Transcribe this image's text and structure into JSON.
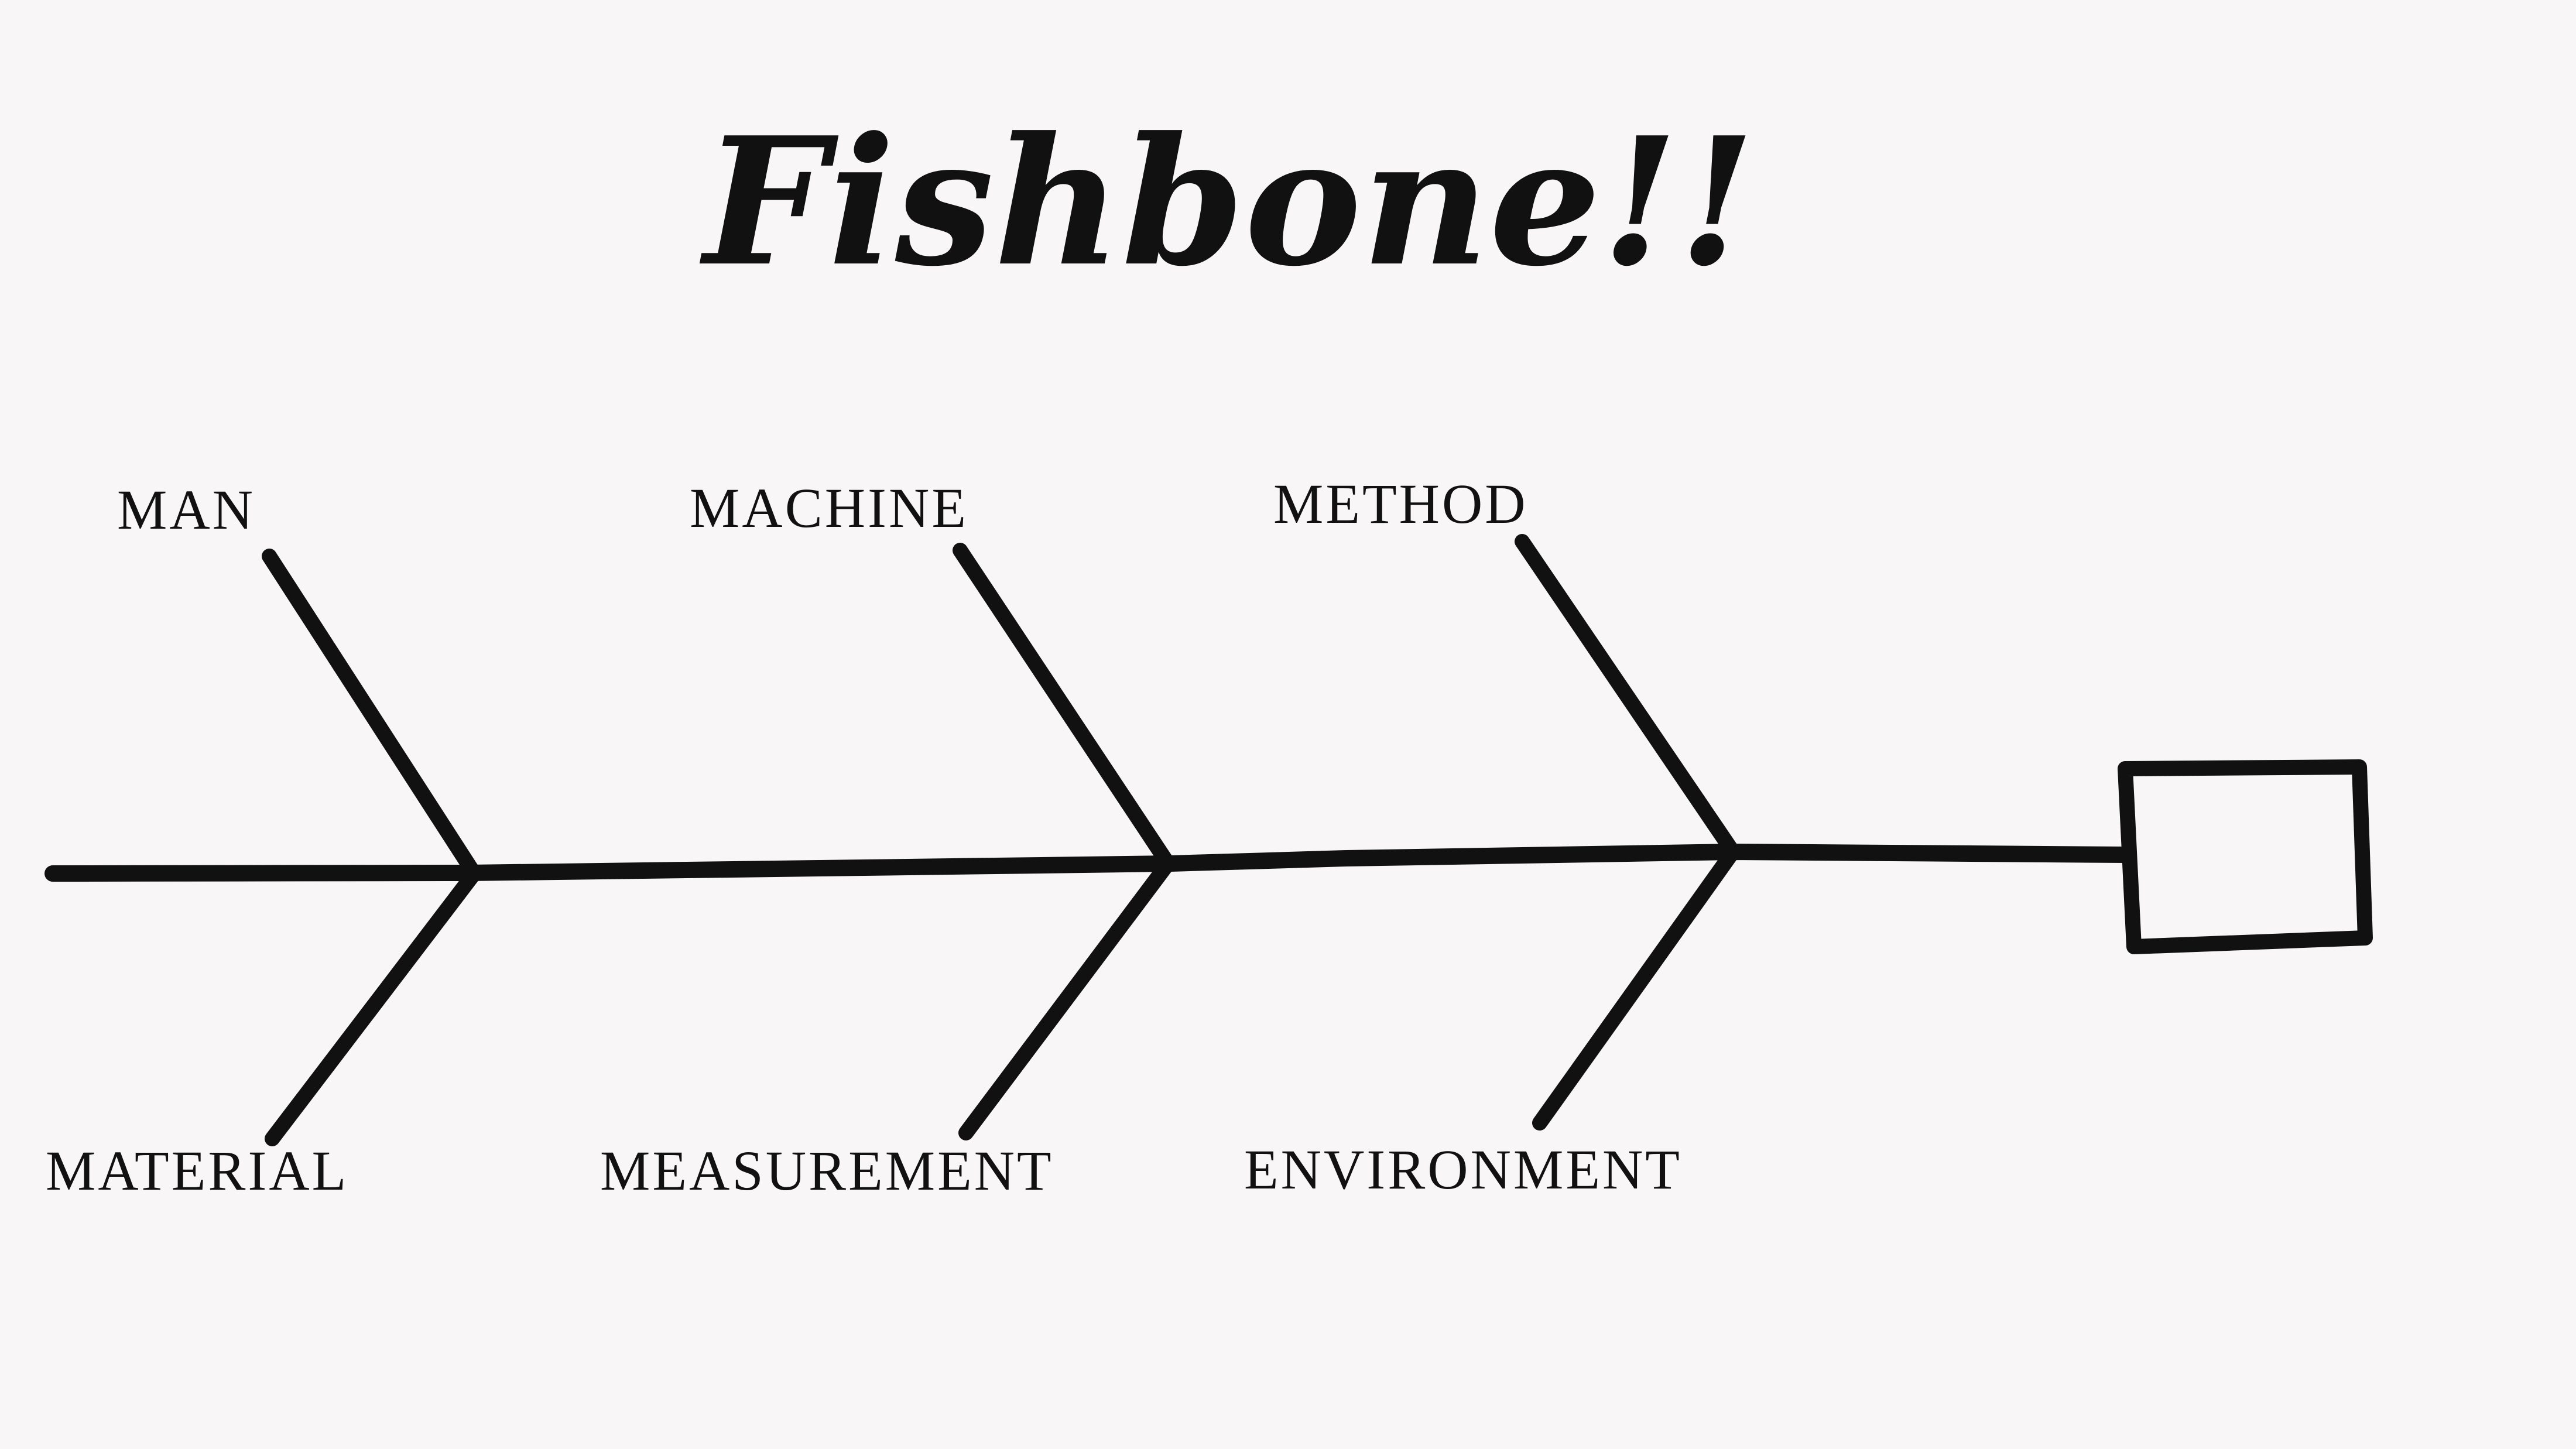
{
  "title": "Fishbone!!",
  "categories": {
    "top": [
      "MAN",
      "MACHINE",
      "METHOD"
    ],
    "bottom": [
      "MATERIAL",
      "MEASUREMENT",
      "ENVIRONMENT"
    ]
  },
  "head_text": ""
}
